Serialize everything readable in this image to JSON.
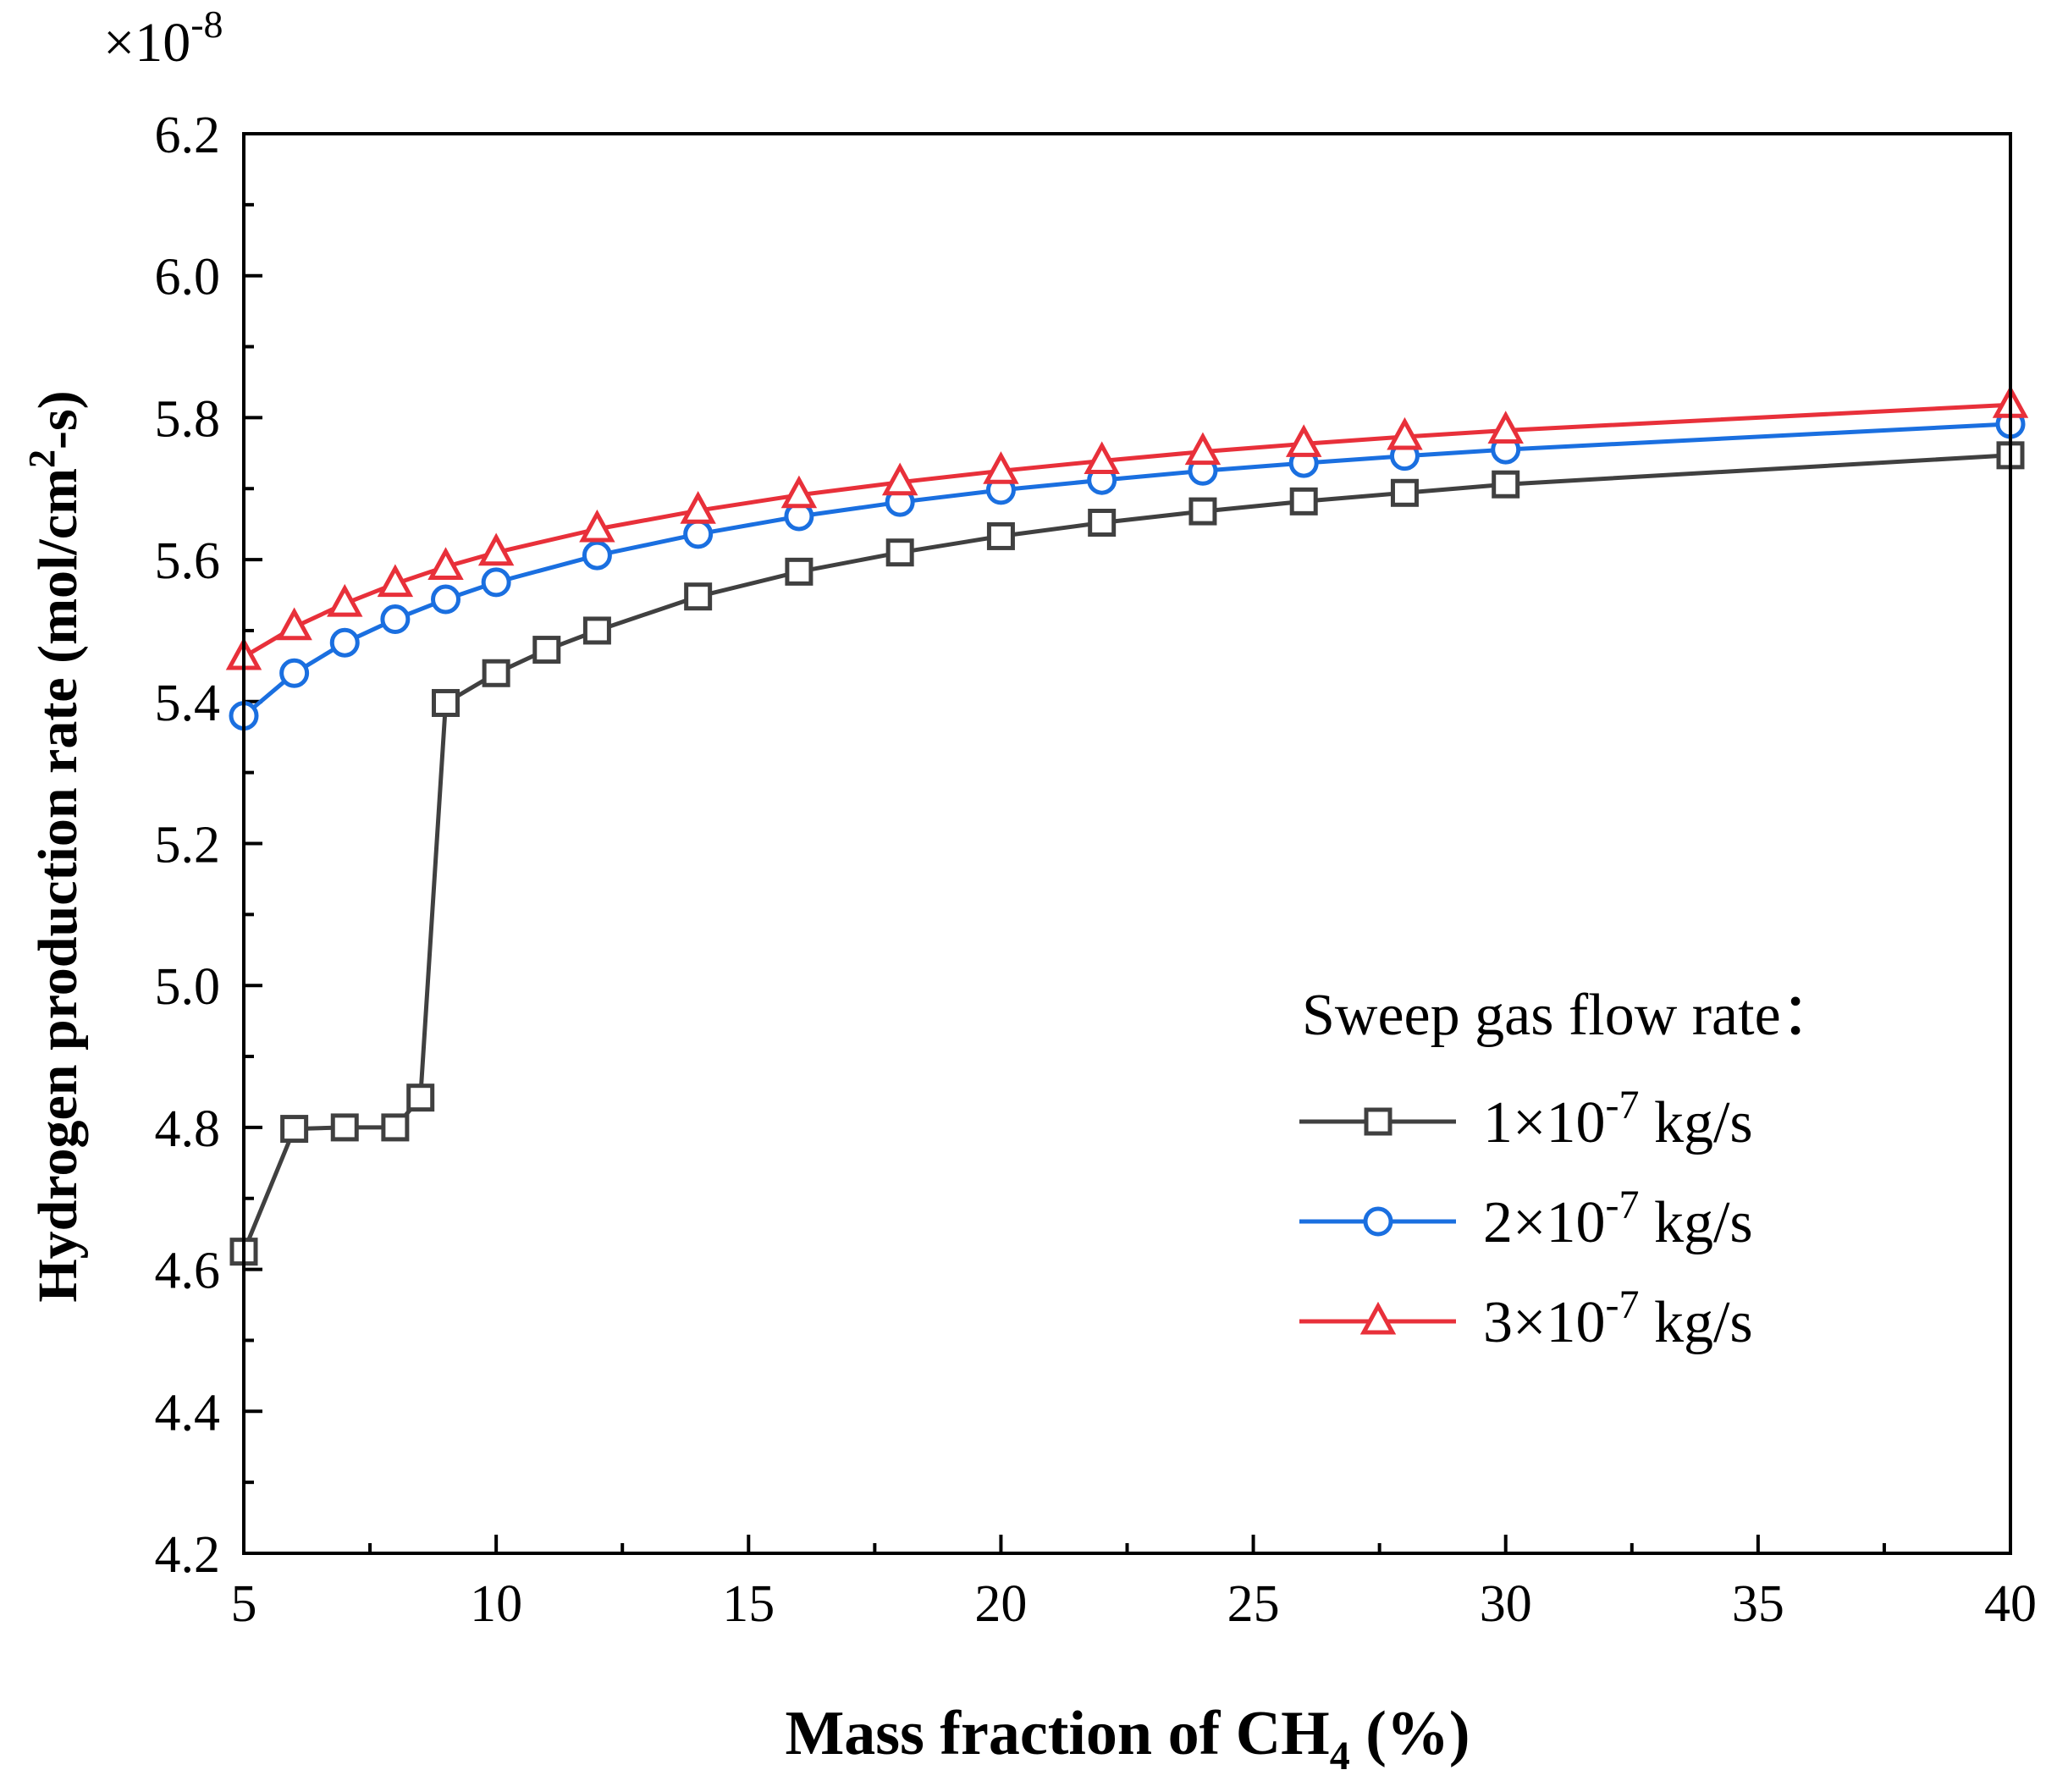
{
  "chart_data": {
    "type": "line",
    "multiplier_prefix": "×10",
    "multiplier_exponent": "-8",
    "xlabel": {
      "main": "Mass fraction of CH",
      "sub": "4",
      "tail": " (%)"
    },
    "ylabel": {
      "main": "Hydrogen production rate (mol/cm",
      "sup": "2",
      "tail": "-s)"
    },
    "xlim": [
      5,
      40
    ],
    "ylim": [
      4.2,
      6.2
    ],
    "x_ticks": [
      5,
      10,
      15,
      20,
      25,
      30,
      35,
      40
    ],
    "x_tick_labels": [
      "5",
      "10",
      "15",
      "20",
      "25",
      "30",
      "35",
      "40"
    ],
    "y_ticks": [
      4.2,
      4.4,
      4.6,
      4.8,
      5.0,
      5.2,
      5.4,
      5.6,
      5.8,
      6.0,
      6.2
    ],
    "y_tick_labels": [
      "4.2",
      "4.4",
      "4.6",
      "4.8",
      "5.0",
      "5.2",
      "5.4",
      "5.6",
      "5.8",
      "6.0",
      "6.2"
    ],
    "grid": false,
    "legend": {
      "title": "Sweep gas flow rate：",
      "placement": "bottom-right"
    },
    "series": [
      {
        "name": "1×10-7 kg/s",
        "label_prefix": "1×10",
        "label_exp": "-7",
        "label_unit": " kg/s",
        "color": "#404040",
        "marker": "square",
        "x": [
          5,
          6,
          7,
          8,
          8.5,
          9,
          10,
          11,
          12,
          14,
          16,
          18,
          20,
          22,
          24,
          26,
          28,
          30,
          40
        ],
        "y": [
          4.625,
          4.798,
          4.8,
          4.8,
          4.842,
          5.398,
          5.44,
          5.473,
          5.5,
          5.548,
          5.583,
          5.61,
          5.633,
          5.652,
          5.668,
          5.682,
          5.694,
          5.706,
          5.747
        ]
      },
      {
        "name": "2×10-7 kg/s",
        "label_prefix": "2×10",
        "label_exp": "-7",
        "label_unit": " kg/s",
        "color": "#1a6fe0",
        "marker": "circle",
        "x": [
          5,
          6,
          7,
          8,
          9,
          10,
          12,
          14,
          16,
          18,
          20,
          22,
          24,
          26,
          28,
          30,
          40
        ],
        "y": [
          5.38,
          5.44,
          5.483,
          5.516,
          5.544,
          5.568,
          5.606,
          5.636,
          5.661,
          5.681,
          5.698,
          5.712,
          5.725,
          5.736,
          5.746,
          5.755,
          5.791
        ]
      },
      {
        "name": "3×10-7 kg/s",
        "label_prefix": "3×10",
        "label_exp": "-7",
        "label_unit": " kg/s",
        "color": "#e8303a",
        "marker": "triangle",
        "x": [
          5,
          6,
          7,
          8,
          9,
          10,
          12,
          14,
          16,
          18,
          20,
          22,
          24,
          26,
          28,
          30,
          40
        ],
        "y": [
          5.463,
          5.505,
          5.538,
          5.566,
          5.59,
          5.61,
          5.643,
          5.669,
          5.691,
          5.709,
          5.725,
          5.739,
          5.752,
          5.763,
          5.773,
          5.782,
          5.818
        ]
      }
    ]
  }
}
